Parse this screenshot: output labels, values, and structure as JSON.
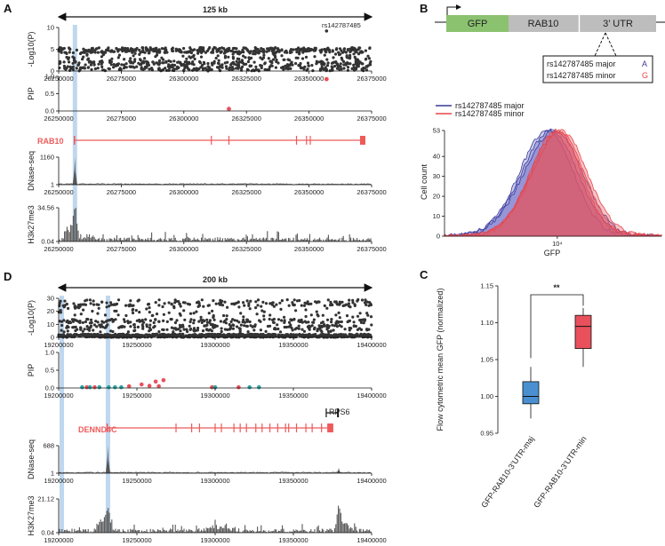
{
  "colors": {
    "gene": "#ee5a5a",
    "highlight": "#a9cbea",
    "scatter": "#333333",
    "track": "#555555",
    "pip_red": "#e8505b",
    "pip_teal": "#2aa5a5",
    "major": "#3a3a9a",
    "minor": "#e8454a",
    "box_major": "#4a90d0",
    "box_minor": "#e8505b",
    "gfp": "#8bc270",
    "grey_box": "#bdbdbd"
  },
  "panels": {
    "A": "A",
    "B": "B",
    "C": "C",
    "D": "D"
  },
  "chart_data": [
    {
      "id": "A",
      "type": "scatter",
      "title": "",
      "span_label": "125 kb",
      "snp_label": "rs142787485",
      "gene_label": "RAB10",
      "xlim": [
        26250000,
        26375000
      ],
      "x_ticks": [
        "26250000",
        "26275000",
        "26300000",
        "26325000",
        "26350000",
        "26375000"
      ],
      "tracks": [
        {
          "name": "log10p",
          "ylabel": "-Log10(P)",
          "ylim": [
            0,
            10
          ],
          "yticks": [
            "0",
            "5",
            "10"
          ],
          "highlight_point": {
            "x": 26357000,
            "y": 9.2
          }
        },
        {
          "name": "pip",
          "ylabel": "PIP",
          "ylim": [
            0,
            1
          ],
          "yticks": [
            "0.0",
            "0.5",
            "1.0"
          ],
          "points": [
            {
              "x": 26357000,
              "y": 0.92
            },
            {
              "x": 26318000,
              "y": 0.06
            }
          ]
        },
        {
          "name": "dnase",
          "ylabel": "DNase-seq",
          "ylim": [
            1,
            1160
          ],
          "yticks": [
            "1",
            "1160"
          ],
          "peaks": [
            {
              "x": 26256500,
              "y": 1160
            }
          ]
        },
        {
          "name": "h3k27me3",
          "ylabel": "H3k27me3",
          "ylim": [
            0.04,
            34.56
          ],
          "yticks": [
            "0.04",
            "34.56"
          ]
        }
      ],
      "highlight_x": 26256500
    },
    {
      "id": "B",
      "type": "area",
      "construct": [
        "GFP",
        "RAB10",
        "3’ UTR"
      ],
      "allele_box": [
        {
          "label": "rs142787485 major",
          "allele": "A"
        },
        {
          "label": "rs142787485 minor",
          "allele": "G"
        }
      ],
      "legend": [
        "rs142787485 major",
        "rs142787485 minor"
      ],
      "xlabel": "GFP",
      "ylabel": "Cell count",
      "x_tick": "10⁴",
      "ylim": [
        0,
        53
      ],
      "yticks": [
        "0",
        "10",
        "20",
        "30",
        "40",
        "53"
      ],
      "series": [
        {
          "name": "rs142787485 major",
          "peak_log": 3.93,
          "sd": 0.34,
          "n": 3
        },
        {
          "name": "rs142787485 minor",
          "peak_log": 4.02,
          "sd": 0.32,
          "n": 3
        }
      ]
    },
    {
      "id": "C",
      "type": "box",
      "ylabel": "Flow cytometric mean GFP (normalized)",
      "ylim": [
        0.95,
        1.15
      ],
      "yticks": [
        "0.95",
        "1.00",
        "1.05",
        "1.10",
        "1.15"
      ],
      "significance": "**",
      "categories": [
        "GFP-RAB10-3’UTR-maj",
        "GFP-RAB10-3’UTR-min"
      ],
      "boxes": [
        {
          "min": 0.97,
          "q1": 0.99,
          "median": 1.0,
          "q3": 1.02,
          "max": 1.04
        },
        {
          "min": 1.04,
          "q1": 1.065,
          "median": 1.095,
          "q3": 1.11,
          "max": 1.12
        }
      ]
    },
    {
      "id": "D",
      "type": "scatter",
      "span_label": "200 kb",
      "gene_label": "DENND4C",
      "gene2_label": "RPS6",
      "xlim": [
        19200000,
        19400000
      ],
      "x_ticks": [
        "19200000",
        "19250000",
        "19300000",
        "19350000",
        "19400000"
      ],
      "tracks": [
        {
          "name": "log10p",
          "ylabel": "-Log10(P)",
          "ylim": [
            0,
            30
          ],
          "yticks": [
            "0",
            "10",
            "20",
            "30"
          ]
        },
        {
          "name": "pip",
          "ylabel": "PIP",
          "ylim": [
            0,
            1
          ],
          "yticks": [
            "0.0",
            "0.5",
            "1.0"
          ]
        },
        {
          "name": "dnase",
          "ylabel": "DNase-seq",
          "ylim": [
            1,
            688
          ],
          "yticks": [
            "1",
            "688"
          ],
          "peaks": [
            {
              "x": 19231500,
              "y": 688
            },
            {
              "x": 19379000,
              "y": 140
            }
          ]
        },
        {
          "name": "h3k27me3",
          "ylabel": "H3K27me3",
          "ylim": [
            0.04,
            21.12
          ],
          "yticks": [
            "0.04",
            "21.12"
          ]
        }
      ],
      "highlight_x": [
        19202000,
        19231500
      ]
    }
  ]
}
